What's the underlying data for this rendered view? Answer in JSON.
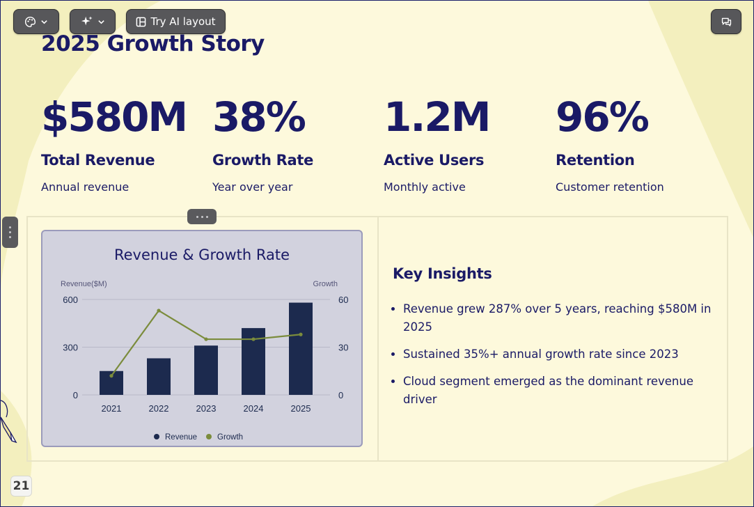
{
  "toolbar": {
    "theme_button": {
      "icon": "palette-icon",
      "caret": "chevron-down-icon"
    },
    "ai_button": {
      "icon": "sparkles-icon",
      "caret": "chevron-down-icon"
    },
    "ai_layout_button": {
      "icon": "layout-icon",
      "label": "Try AI layout"
    },
    "comments_button": {
      "icon": "comment-icon"
    }
  },
  "slide": {
    "title": "2025 Growth Story",
    "stats": [
      {
        "value": "$580M",
        "label": "Total Revenue",
        "description": "Annual revenue"
      },
      {
        "value": "38%",
        "label": "Growth Rate",
        "description": "Year over year"
      },
      {
        "value": "1.2M",
        "label": "Active Users",
        "description": "Monthly active"
      },
      {
        "value": "96%",
        "label": "Retention",
        "description": "Customer retention"
      }
    ],
    "insights": {
      "title": "Key Insights",
      "items": [
        "Revenue grew 287% over 5 years, reaching $580M in 2025",
        "Sustained 35%+ annual growth rate since 2023",
        "Cloud segment emerged as the dominant revenue driver"
      ]
    },
    "slide_number": "21"
  },
  "colors": {
    "background": "#fdf9dc",
    "text_primary": "#1a1a66",
    "bar": "#1c2a4e",
    "line": "#7b8c3c",
    "chart_card": "#d2d2de"
  },
  "chart_data": {
    "type": "bar",
    "title": "Revenue & Growth Rate",
    "categories": [
      "2021",
      "2022",
      "2023",
      "2024",
      "2025"
    ],
    "series": [
      {
        "name": "Revenue",
        "type": "bar",
        "axis": "left",
        "values": [
          150,
          230,
          310,
          420,
          580
        ]
      },
      {
        "name": "Growth",
        "type": "line",
        "axis": "right",
        "values": [
          12,
          53,
          35,
          35,
          38
        ]
      }
    ],
    "ylabel_left": "Revenue($M)",
    "ylabel_right": "Growth",
    "ylim_left": [
      0,
      600
    ],
    "ylim_right": [
      0,
      60
    ],
    "yticks_left": [
      "0",
      "300",
      "600"
    ],
    "yticks_right": [
      "0",
      "30",
      "60"
    ],
    "grid": true,
    "legend": "bottom",
    "legend_entries": [
      "Revenue",
      "Growth"
    ]
  }
}
